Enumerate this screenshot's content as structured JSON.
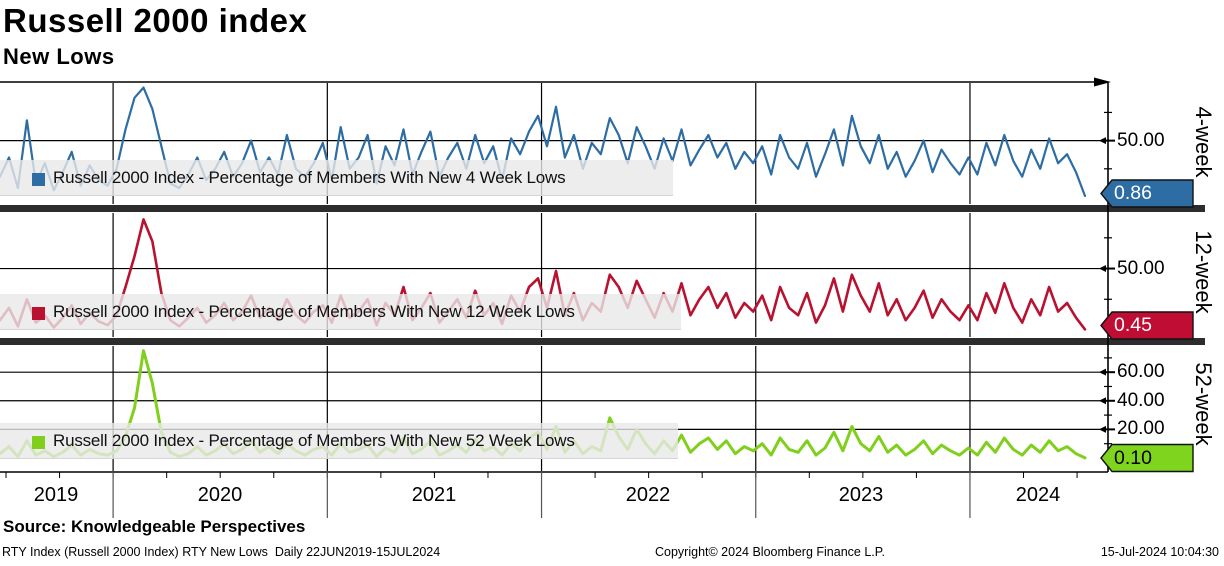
{
  "header": {
    "title": "Russell 2000 index",
    "subtitle": "New Lows"
  },
  "source_line": "Source: Knowledgeable Perspectives",
  "footer": {
    "left": "RTY Index (Russell 2000 Index) RTY New Lows  Daily 22JUN2019-15JUL2024",
    "center": "Copyright© 2024 Bloomberg Finance L.P.",
    "right": "15-Jul-2024 10:04:30"
  },
  "chart_data": {
    "type": "line",
    "title": "Russell 2000 index - New Lows",
    "x_axis": {
      "unit": "date",
      "start": "22JUN2019",
      "end": "15JUL2024"
    },
    "x_range_years": [
      2019.472,
      2024.537
    ],
    "x_year_boundaries": [
      2020,
      2021,
      2022,
      2023,
      2024
    ],
    "x_year_labels": [
      "2019",
      "2020",
      "2021",
      "2022",
      "2023",
      "2024"
    ],
    "grid": true,
    "legend_position": "inside-lower-left",
    "panels": [
      {
        "axis_label": "4-week",
        "legend": "Russell 2000 Index - Percentage of Members With New 4 Week Lows",
        "color": "#2e6da4",
        "badge_color": "#2e6da4",
        "badge_text_color": "#ffffff",
        "last_value": "0.86",
        "ylim": [
          0,
          102
        ],
        "ytick_step": 25,
        "ytick_labels": [
          {
            "value": 50,
            "label": "50.00"
          }
        ],
        "values": [
          18,
          35,
          8,
          68,
          12,
          30,
          6,
          22,
          40,
          10,
          28,
          15,
          10,
          25,
          60,
          88,
          97,
          78,
          45,
          12,
          8,
          20,
          35,
          15,
          25,
          40,
          18,
          30,
          50,
          22,
          35,
          20,
          55,
          25,
          18,
          30,
          48,
          15,
          62,
          25,
          35,
          55,
          12,
          45,
          28,
          60,
          20,
          40,
          58,
          18,
          35,
          48,
          25,
          55,
          30,
          45,
          15,
          52,
          38,
          58,
          72,
          45,
          80,
          35,
          55,
          25,
          48,
          38,
          70,
          55,
          30,
          62,
          45,
          25,
          52,
          32,
          60,
          28,
          42,
          55,
          35,
          48,
          25,
          40,
          30,
          45,
          20,
          55,
          35,
          25,
          48,
          18,
          38,
          60,
          28,
          72,
          45,
          30,
          55,
          25,
          40,
          18,
          32,
          50,
          22,
          42,
          30,
          20,
          35,
          20,
          48,
          28,
          55,
          32,
          18,
          42,
          25,
          52,
          30,
          38,
          22,
          0.86
        ]
      },
      {
        "axis_label": "12-week",
        "legend": "Russell 2000 Index - Percentage of Members With New 12 Week Lows",
        "color": "#b91230",
        "badge_color": "#c00d33",
        "badge_text_color": "#ffffff",
        "last_value": "0.45",
        "ylim": [
          0,
          96
        ],
        "ytick_step": 25,
        "ytick_labels": [
          {
            "value": 50,
            "label": "50.00"
          }
        ],
        "values": [
          8,
          18,
          3,
          25,
          6,
          12,
          2,
          10,
          20,
          5,
          14,
          7,
          4,
          12,
          35,
          60,
          90,
          72,
          30,
          8,
          3,
          10,
          18,
          6,
          12,
          22,
          8,
          15,
          28,
          10,
          18,
          8,
          25,
          12,
          6,
          15,
          20,
          6,
          28,
          10,
          15,
          25,
          4,
          22,
          12,
          35,
          8,
          18,
          30,
          6,
          15,
          25,
          10,
          32,
          12,
          22,
          5,
          28,
          15,
          35,
          42,
          18,
          48,
          12,
          30,
          8,
          22,
          15,
          45,
          35,
          18,
          40,
          25,
          10,
          30,
          15,
          38,
          12,
          25,
          35,
          18,
          30,
          10,
          22,
          15,
          28,
          8,
          35,
          18,
          12,
          30,
          6,
          20,
          42,
          15,
          45,
          28,
          15,
          38,
          12,
          25,
          8,
          18,
          32,
          10,
          25,
          15,
          8,
          20,
          8,
          30,
          14,
          38,
          18,
          6,
          25,
          12,
          35,
          15,
          22,
          10,
          0.45
        ]
      },
      {
        "axis_label": "52-week",
        "legend": "Russell 2000 Index - Percentage of Members With New 52 Week Lows",
        "color": "#80cf1c",
        "badge_color": "#7fd41e",
        "badge_text_color": "#000000",
        "last_value": "0.10",
        "ylim": [
          0,
          79
        ],
        "ytick_step": 10,
        "ytick_labels": [
          {
            "value": 60,
            "label": "60.00"
          },
          {
            "value": 40,
            "label": "40.00"
          },
          {
            "value": 20,
            "label": "20.00"
          }
        ],
        "values": [
          3,
          8,
          1,
          12,
          2,
          5,
          1,
          4,
          9,
          2,
          6,
          3,
          2,
          5,
          15,
          35,
          75,
          52,
          18,
          4,
          1,
          3,
          8,
          2,
          5,
          10,
          3,
          6,
          12,
          4,
          8,
          3,
          10,
          5,
          2,
          6,
          8,
          2,
          10,
          4,
          6,
          9,
          1,
          7,
          4,
          14,
          3,
          6,
          12,
          2,
          5,
          9,
          4,
          13,
          5,
          8,
          2,
          10,
          5,
          14,
          18,
          6,
          22,
          4,
          12,
          3,
          8,
          5,
          28,
          15,
          6,
          20,
          10,
          3,
          12,
          5,
          16,
          4,
          10,
          14,
          6,
          12,
          3,
          8,
          5,
          10,
          2,
          14,
          6,
          4,
          12,
          2,
          7,
          18,
          5,
          22,
          10,
          5,
          15,
          4,
          9,
          2,
          6,
          12,
          3,
          9,
          5,
          2,
          7,
          2,
          11,
          4,
          14,
          6,
          2,
          9,
          4,
          12,
          5,
          8,
          3,
          0.1
        ]
      }
    ]
  }
}
